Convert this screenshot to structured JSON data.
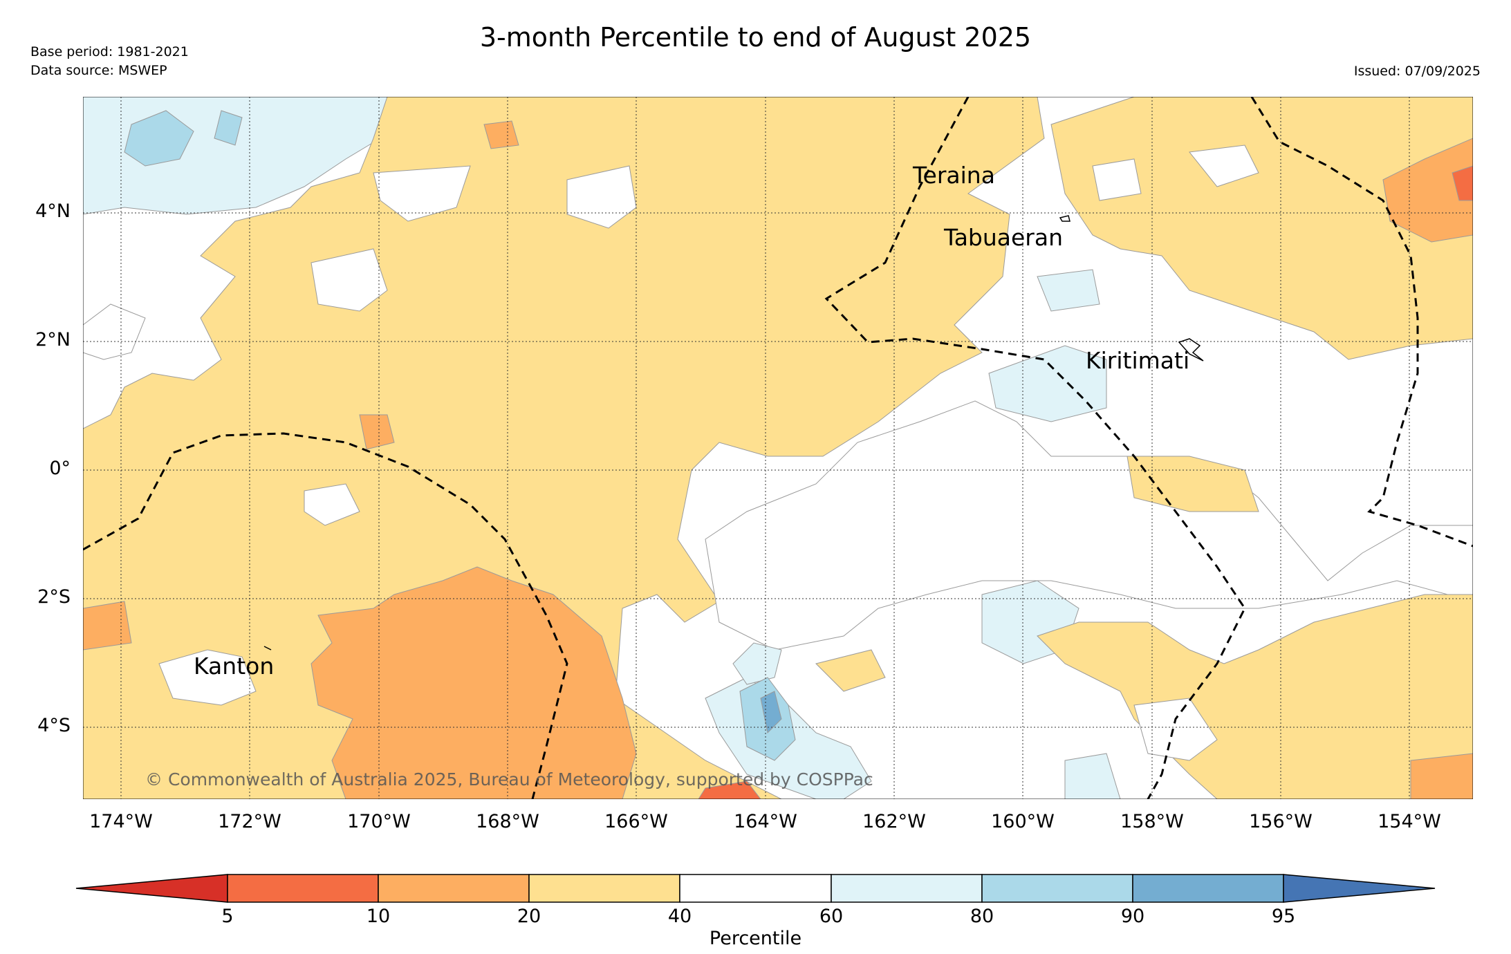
{
  "title": "3-month Percentile to end of August 2025",
  "base_period": "Base period: 1981-2021",
  "data_source": "Data source: MSWEP",
  "issued": "Issued: 07/09/2025",
  "copyright": "© Commonwealth of Australia 2025, Bureau of Meteorology, supported by COSPPac",
  "place_names": {
    "teraina": "Teraina",
    "tabuaeran": "Tabuaeran",
    "kiritimati": "Kiritimati",
    "kanton": "Kanton"
  },
  "lat_ticks": [
    "4°N",
    "2°N",
    "0°",
    "2°S",
    "4°S"
  ],
  "lon_ticks": [
    "174°W",
    "172°W",
    "170°W",
    "168°W",
    "166°W",
    "164°W",
    "162°W",
    "160°W",
    "158°W",
    "156°W",
    "154°W"
  ],
  "colorbar": {
    "label": "Percentile",
    "ticks": [
      "5",
      "10",
      "20",
      "40",
      "60",
      "80",
      "90",
      "95"
    ],
    "colors": {
      "below_5": "#d73027",
      "p5_10": "#f46d43",
      "p10_20": "#fdae61",
      "p20_40": "#fee090",
      "p40_60": "#ffffff",
      "p60_80": "#e0f3f8",
      "p80_90": "#abd9e9",
      "p90_95": "#74add1",
      "above_95": "#4575b4"
    }
  }
}
